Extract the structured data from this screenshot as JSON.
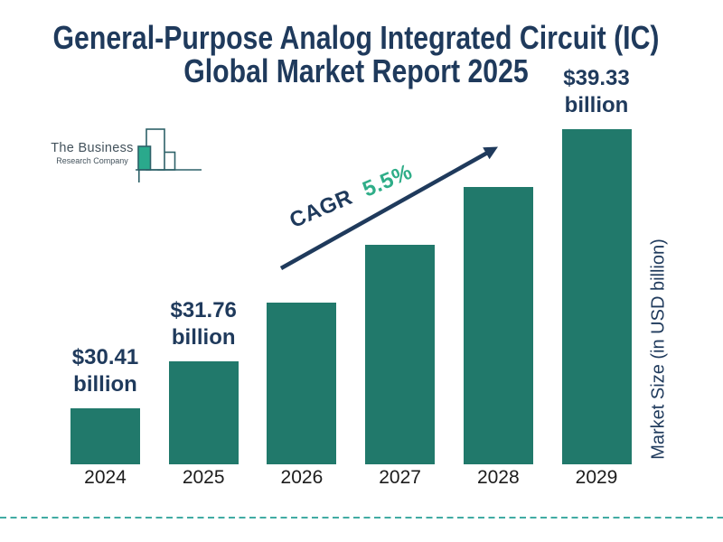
{
  "title": {
    "line1": "General-Purpose Analog Integrated Circuit (IC)",
    "line2": "Global Market Report 2025"
  },
  "logo": {
    "name_top": "The Business",
    "name_bottom": "Research Company"
  },
  "cagr": {
    "label": "CAGR",
    "value": "5.5%"
  },
  "chart_data": {
    "type": "bar",
    "title": "General-Purpose Analog Integrated Circuit (IC) Global Market Report 2025",
    "categories": [
      "2024",
      "2025",
      "2026",
      "2027",
      "2028",
      "2029"
    ],
    "values": [
      30.41,
      31.76,
      33.51,
      35.35,
      37.29,
      39.33
    ],
    "unit": "USD billion",
    "ylabel": "Market Size (in USD billion)",
    "cagr": "5.5%",
    "legend": false,
    "gridlines": false,
    "bar_value_labels": [
      {
        "bar": 0,
        "line1": "$30.41",
        "line2": "billion"
      },
      {
        "bar": 1,
        "line1": "$31.76",
        "line2": "billion"
      },
      {
        "bar": 5,
        "line1": "$39.33",
        "line2": "billion"
      }
    ],
    "colors": {
      "bar": "#21796b",
      "navy": "#1f3a5c",
      "accent_green": "#2fad88",
      "dashed_line": "#41aba3",
      "year_text": "#1c1c1c",
      "logo_stroke": "#2d6168",
      "logo_text": "#43525c",
      "logo_fill": "#2aa98c"
    }
  }
}
